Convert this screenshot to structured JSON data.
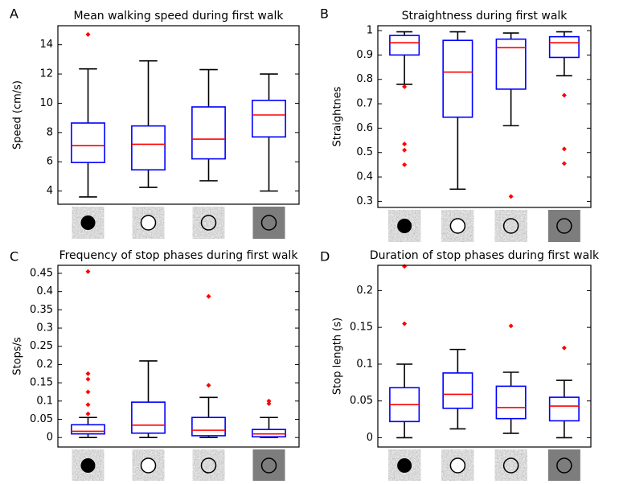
{
  "chart_data": [
    {
      "type": "box",
      "label": "A",
      "title": "Mean walking speed during first walk",
      "y_label": "Speed (cm/s)",
      "categories": [
        null,
        null,
        null,
        null
      ],
      "boxes": [
        {
          "whislo": 3.6,
          "q1": 5.95,
          "median": 7.1,
          "q3": 8.65,
          "whishi": 12.35,
          "fliers": [
            14.7
          ]
        },
        {
          "whislo": 4.25,
          "q1": 5.45,
          "median": 7.2,
          "q3": 8.45,
          "whishi": 12.9,
          "fliers": []
        },
        {
          "whislo": 4.7,
          "q1": 6.2,
          "median": 7.55,
          "q3": 9.75,
          "whishi": 12.3,
          "fliers": []
        },
        {
          "whislo": 4.0,
          "q1": 7.7,
          "median": 9.2,
          "q3": 10.2,
          "whishi": 12.0,
          "fliers": []
        }
      ],
      "ylim": [
        3.1,
        15.3
      ],
      "yticks": [
        4,
        6,
        8,
        10,
        12,
        14
      ],
      "box_color": "#0000ff",
      "median_color": "#ff0000",
      "whisker_color": "#000000",
      "flier_color": "#ff0000"
    },
    {
      "type": "box",
      "label": "B",
      "title": "Straightness during first walk",
      "y_label": "Straightnes",
      "categories": [
        null,
        null,
        null,
        null
      ],
      "boxes": [
        {
          "whislo": 0.78,
          "q1": 0.9,
          "median": 0.95,
          "q3": 0.98,
          "whishi": 0.995,
          "fliers": [
            0.77,
            0.535,
            0.51,
            0.45
          ]
        },
        {
          "whislo": 0.35,
          "q1": 0.645,
          "median": 0.83,
          "q3": 0.96,
          "whishi": 0.995,
          "fliers": []
        },
        {
          "whislo": 0.61,
          "q1": 0.76,
          "median": 0.93,
          "q3": 0.965,
          "whishi": 0.99,
          "fliers": [
            0.32
          ]
        },
        {
          "whislo": 0.815,
          "q1": 0.89,
          "median": 0.95,
          "q3": 0.975,
          "whishi": 0.995,
          "fliers": [
            0.735,
            0.515,
            0.455
          ]
        }
      ],
      "ylim": [
        0.275,
        1.02
      ],
      "yticks": [
        0.3,
        0.4,
        0.5,
        0.6,
        0.7,
        0.8,
        0.9,
        1
      ],
      "box_color": "#0000ff",
      "median_color": "#ff0000",
      "whisker_color": "#000000",
      "flier_color": "#ff0000"
    },
    {
      "type": "box",
      "label": "C",
      "title": "Frequency of stop phases during first walk",
      "y_label": "Stops/s",
      "categories": [
        null,
        null,
        null,
        null
      ],
      "boxes": [
        {
          "whislo": 0,
          "q1": 0.01,
          "median": 0.017,
          "q3": 0.035,
          "whishi": 0.055,
          "fliers": [
            0.455,
            0.175,
            0.16,
            0.125,
            0.09,
            0.065
          ]
        },
        {
          "whislo": 0,
          "q1": 0.012,
          "median": 0.034,
          "q3": 0.097,
          "whishi": 0.21,
          "fliers": []
        },
        {
          "whislo": 0,
          "q1": 0.005,
          "median": 0.02,
          "q3": 0.055,
          "whishi": 0.11,
          "fliers": [
            0.387,
            0.143
          ]
        },
        {
          "whislo": 0,
          "q1": 0.002,
          "median": 0.01,
          "q3": 0.022,
          "whishi": 0.055,
          "fliers": [
            0.1,
            0.093
          ]
        }
      ],
      "ylim": [
        -0.026,
        0.472
      ],
      "yticks": [
        0,
        0.05,
        0.1,
        0.15,
        0.2,
        0.25,
        0.3,
        0.35,
        0.4,
        0.45
      ],
      "box_color": "#0000ff",
      "median_color": "#ff0000",
      "whisker_color": "#000000",
      "flier_color": "#ff0000"
    },
    {
      "type": "box",
      "label": "D",
      "title": "Duration of stop phases during first walk",
      "y_label": "Stop length (s)",
      "categories": [
        null,
        null,
        null,
        null
      ],
      "boxes": [
        {
          "whislo": 0,
          "q1": 0.022,
          "median": 0.045,
          "q3": 0.068,
          "whishi": 0.1,
          "fliers": [
            0.233,
            0.155
          ]
        },
        {
          "whislo": 0.012,
          "q1": 0.04,
          "median": 0.059,
          "q3": 0.088,
          "whishi": 0.12,
          "fliers": []
        },
        {
          "whislo": 0.006,
          "q1": 0.026,
          "median": 0.041,
          "q3": 0.07,
          "whishi": 0.089,
          "fliers": [
            0.152
          ]
        },
        {
          "whislo": 0,
          "q1": 0.023,
          "median": 0.043,
          "q3": 0.055,
          "whishi": 0.078,
          "fliers": [
            0.122
          ]
        }
      ],
      "ylim": [
        -0.0126,
        0.2343
      ],
      "yticks": [
        0,
        0.05,
        0.1,
        0.15,
        0.2
      ],
      "box_color": "#0000ff",
      "median_color": "#ff0000",
      "whisker_color": "#000000",
      "flier_color": "#ff0000"
    }
  ]
}
